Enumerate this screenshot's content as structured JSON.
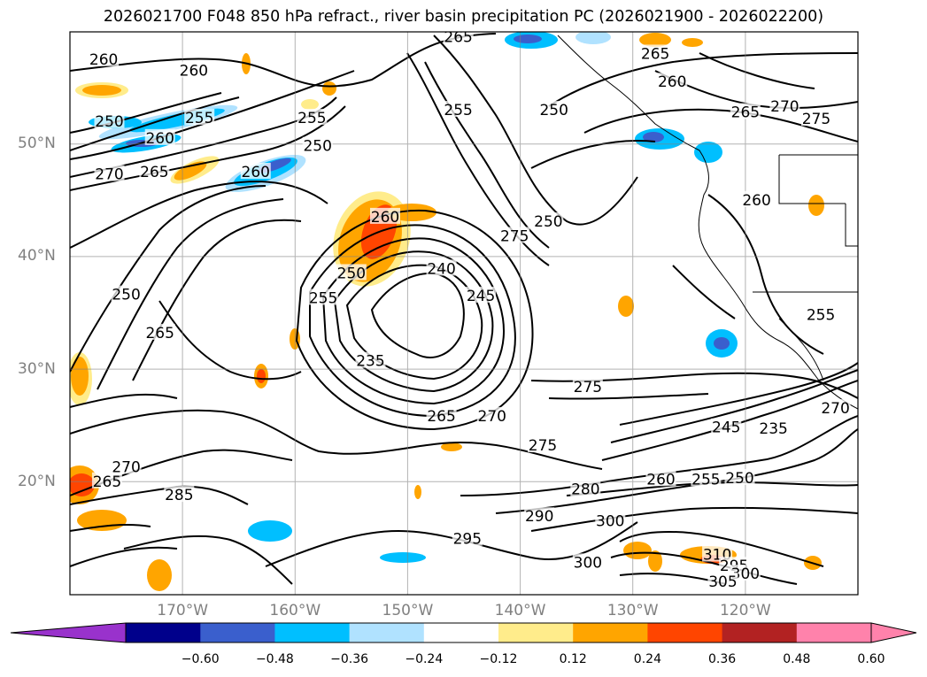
{
  "title": "2026021700 F048 850 hPa refract., river basin precipitation PC (2026021900 - 2026022200)",
  "map": {
    "projection": "plate-carree",
    "lon_range": [
      -180,
      -110
    ],
    "lat_range": [
      10,
      60
    ],
    "gridlines": true,
    "lat_ticks": [
      {
        "value": 50,
        "label": "50°N"
      },
      {
        "value": 40,
        "label": "40°N"
      },
      {
        "value": 30,
        "label": "30°N"
      },
      {
        "value": 20,
        "label": "20°N"
      }
    ],
    "lon_ticks": [
      {
        "value": -170,
        "label": "170°W"
      },
      {
        "value": -160,
        "label": "160°W"
      },
      {
        "value": -150,
        "label": "150°W"
      },
      {
        "value": -140,
        "label": "140°W"
      },
      {
        "value": -130,
        "label": "130°W"
      },
      {
        "value": -120,
        "label": "120°W"
      }
    ],
    "contour_labels": [
      {
        "text": "260",
        "lon": -177,
        "lat": 57.5
      },
      {
        "text": "260",
        "lon": -169,
        "lat": 56.5
      },
      {
        "text": "265",
        "lon": -145.5,
        "lat": 59.5
      },
      {
        "text": "265",
        "lon": -128,
        "lat": 58
      },
      {
        "text": "260",
        "lon": -126.5,
        "lat": 55.5
      },
      {
        "text": "250",
        "lon": -176.5,
        "lat": 52
      },
      {
        "text": "255",
        "lon": -168.5,
        "lat": 52.3
      },
      {
        "text": "260",
        "lon": -172,
        "lat": 50.5
      },
      {
        "text": "255",
        "lon": -158.5,
        "lat": 52.3
      },
      {
        "text": "250",
        "lon": -158,
        "lat": 49.8
      },
      {
        "text": "265",
        "lon": -172.5,
        "lat": 47.5
      },
      {
        "text": "270",
        "lon": -176.5,
        "lat": 47.3
      },
      {
        "text": "260",
        "lon": -163.5,
        "lat": 47.5
      },
      {
        "text": "255",
        "lon": -145.5,
        "lat": 53
      },
      {
        "text": "250",
        "lon": -137,
        "lat": 53
      },
      {
        "text": "265",
        "lon": -120,
        "lat": 52.8
      },
      {
        "text": "270",
        "lon": -116.5,
        "lat": 53.3
      },
      {
        "text": "275",
        "lon": -113.7,
        "lat": 52.2
      },
      {
        "text": "260",
        "lon": -152,
        "lat": 43.5
      },
      {
        "text": "250",
        "lon": -137.5,
        "lat": 43.1
      },
      {
        "text": "260",
        "lon": -119,
        "lat": 45
      },
      {
        "text": "275",
        "lon": -140.5,
        "lat": 41.8
      },
      {
        "text": "250",
        "lon": -155,
        "lat": 38.5
      },
      {
        "text": "240",
        "lon": -147,
        "lat": 38.9
      },
      {
        "text": "245",
        "lon": -143.5,
        "lat": 36.5
      },
      {
        "text": "255",
        "lon": -157.5,
        "lat": 36.3
      },
      {
        "text": "250",
        "lon": -175,
        "lat": 36.6
      },
      {
        "text": "265",
        "lon": -172,
        "lat": 33.2
      },
      {
        "text": "255",
        "lon": -113.3,
        "lat": 34.8
      },
      {
        "text": "235",
        "lon": -153.3,
        "lat": 30.7
      },
      {
        "text": "275",
        "lon": -134,
        "lat": 28.4
      },
      {
        "text": "270",
        "lon": -112,
        "lat": 26.5
      },
      {
        "text": "265",
        "lon": -147,
        "lat": 25.8
      },
      {
        "text": "270",
        "lon": -142.5,
        "lat": 25.8
      },
      {
        "text": "245",
        "lon": -121.7,
        "lat": 24.8
      },
      {
        "text": "235",
        "lon": -117.5,
        "lat": 24.7
      },
      {
        "text": "275",
        "lon": -138,
        "lat": 23.2
      },
      {
        "text": "270",
        "lon": -175,
        "lat": 21.3
      },
      {
        "text": "265",
        "lon": -176.7,
        "lat": 20
      },
      {
        "text": "260",
        "lon": -127.5,
        "lat": 20.2
      },
      {
        "text": "255",
        "lon": -123.5,
        "lat": 20.2
      },
      {
        "text": "250",
        "lon": -120.5,
        "lat": 20.3
      },
      {
        "text": "280",
        "lon": -134.2,
        "lat": 19.3
      },
      {
        "text": "285",
        "lon": -170.3,
        "lat": 18.8
      },
      {
        "text": "290",
        "lon": -138.3,
        "lat": 16.9
      },
      {
        "text": "300",
        "lon": -132,
        "lat": 16.5
      },
      {
        "text": "295",
        "lon": -144.7,
        "lat": 14.9
      },
      {
        "text": "300",
        "lon": -134,
        "lat": 12.8
      },
      {
        "text": "310",
        "lon": -122.5,
        "lat": 13.5
      },
      {
        "text": "295",
        "lon": -121,
        "lat": 12.5
      },
      {
        "text": "300",
        "lon": -120,
        "lat": 11.8
      },
      {
        "text": "305",
        "lon": -122,
        "lat": 11.1
      }
    ]
  },
  "colorbar": {
    "colors": [
      "#9932cc",
      "#6a0dad",
      "#00008b",
      "#3a5fcd",
      "#00bfff",
      "#b0e2ff",
      "#ffffff",
      "#ffec8b",
      "#ffa500",
      "#ff4500",
      "#b22222",
      "#ff82ab",
      "#ff82ab"
    ],
    "labels": [
      "−0.60",
      "−0.48",
      "−0.36",
      "−0.24",
      "−0.12",
      "0.12",
      "0.24",
      "0.36",
      "0.48",
      "0.60"
    ]
  }
}
